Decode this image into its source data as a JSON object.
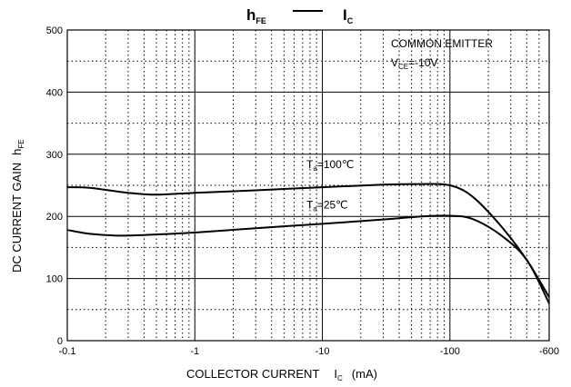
{
  "chart_data": {
    "type": "line",
    "title": {
      "left_main": "h",
      "left_sub": "FE",
      "right_main": "I",
      "right_sub": "C"
    },
    "xlabel": {
      "text": "COLLECTOR CURRENT",
      "symbol_main": "I",
      "symbol_sub": "C",
      "unit": "(mA)"
    },
    "ylabel": {
      "text": "DC CURRENT GAIN",
      "symbol_main": "h",
      "symbol_sub": "FE"
    },
    "x_scale": "log",
    "xlim": [
      0.1,
      600
    ],
    "ylim": [
      0,
      500
    ],
    "grid": true,
    "x_ticks": [
      {
        "value": 0.1,
        "label": "-0.1"
      },
      {
        "value": 1,
        "label": "-1"
      },
      {
        "value": 10,
        "label": "-10"
      },
      {
        "value": 100,
        "label": "-100"
      },
      {
        "value": 600,
        "label": "-600"
      }
    ],
    "y_ticks": [
      {
        "value": 0,
        "label": "0"
      },
      {
        "value": 100,
        "label": "100"
      },
      {
        "value": 200,
        "label": "200"
      },
      {
        "value": 300,
        "label": "300"
      },
      {
        "value": 400,
        "label": "400"
      },
      {
        "value": 500,
        "label": "500"
      }
    ],
    "conditions": {
      "line1": "COMMON EMITTER",
      "line2_main": "V",
      "line2_sub": "CE",
      "line2_rest": "=-10V"
    },
    "series": [
      {
        "label_main": "T",
        "label_sub": "a",
        "label_rest": "=100℃",
        "label_at": [
          7.5,
          278
        ],
        "x": [
          0.1,
          0.15,
          0.3,
          0.5,
          1,
          3,
          10,
          30,
          60,
          100,
          150,
          250,
          400,
          600
        ],
        "y": [
          247,
          246,
          238,
          235,
          238,
          242,
          247,
          251,
          252,
          250,
          232,
          185,
          130,
          70
        ]
      },
      {
        "label_main": "T",
        "label_sub": "a",
        "label_rest": "=25℃",
        "label_at": [
          7.5,
          213
        ],
        "x": [
          0.1,
          0.15,
          0.25,
          0.4,
          1,
          3,
          10,
          30,
          60,
          100,
          150,
          250,
          400,
          600
        ],
        "y": [
          178,
          172,
          169,
          170,
          174,
          181,
          188,
          195,
          200,
          201,
          196,
          170,
          130,
          60
        ]
      }
    ]
  }
}
